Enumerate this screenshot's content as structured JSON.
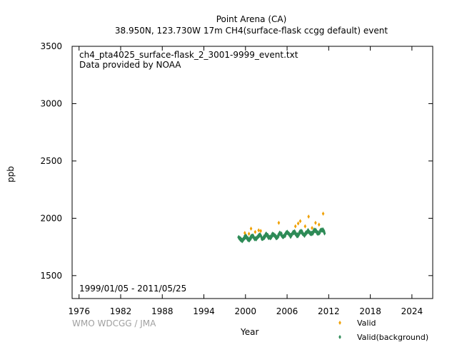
{
  "header": {
    "title": "Point Arena (CA)",
    "subtitle": "38.950N, 123.730W 17m    CH4(surface-flask ccgg default) event"
  },
  "plot": {
    "file_label": "ch4_pta4025_surface-flask_2_3001-9999_event.txt",
    "provider": "Data provided by NOAA",
    "date_range": "1999/01/05 - 2011/05/25",
    "credit": "WMO WDCGG / JMA"
  },
  "chart_data": {
    "type": "scatter",
    "xlabel": "Year",
    "ylabel": "ppb",
    "xlim": [
      1975,
      2027
    ],
    "ylim": [
      1300,
      3500
    ],
    "xticks": [
      1976,
      1982,
      1988,
      1994,
      2000,
      2006,
      2012,
      2018,
      2024
    ],
    "yticks": [
      1500,
      2000,
      2500,
      3000,
      3500
    ],
    "legend_position": "bottom-right",
    "series": [
      {
        "name": "Valid",
        "color": "#f0a000",
        "marker": "diamond",
        "points": [
          [
            1999.9,
            1872
          ],
          [
            2000.5,
            1865
          ],
          [
            2000.8,
            1910
          ],
          [
            2001.4,
            1880
          ],
          [
            2001.9,
            1895
          ],
          [
            2002.2,
            1890
          ],
          [
            2004.8,
            1960
          ],
          [
            2007.2,
            1930
          ],
          [
            2007.6,
            1955
          ],
          [
            2007.9,
            1975
          ],
          [
            2008.6,
            1930
          ],
          [
            2009.1,
            2015
          ],
          [
            2009.6,
            1915
          ],
          [
            2010.1,
            1960
          ],
          [
            2010.6,
            1945
          ],
          [
            2011.2,
            2040
          ]
        ]
      },
      {
        "name": "Valid(background)",
        "color": "#2e8b57",
        "marker": "diamond",
        "x_start": 1999.0,
        "x_end": 2011.4,
        "base": 1820,
        "trend_per_year": 5.5,
        "seasonal_amplitude": 15,
        "scatter": 10,
        "n_points": 300
      }
    ]
  }
}
